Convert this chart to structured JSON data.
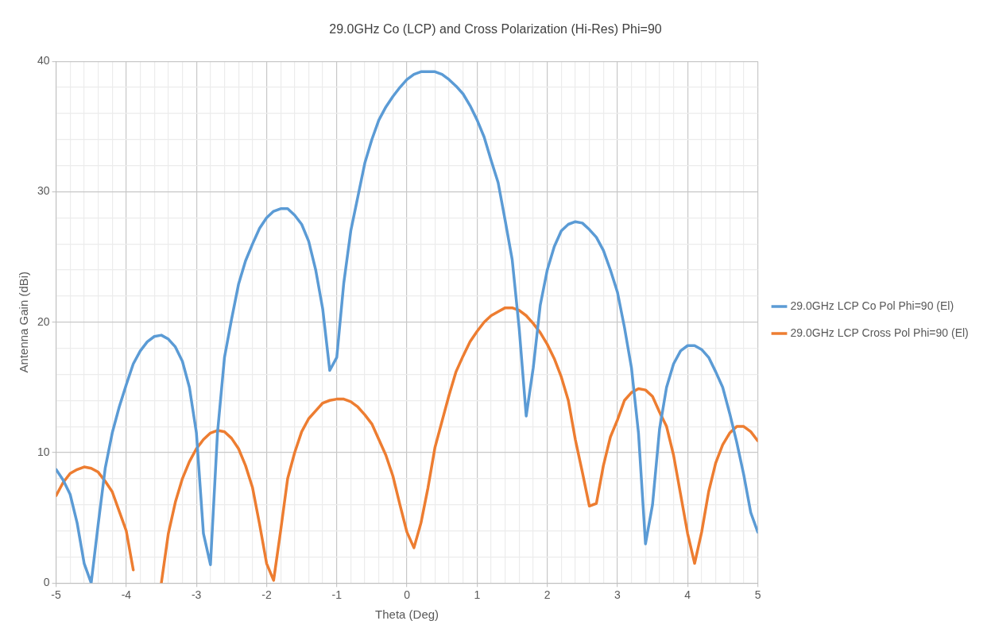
{
  "chart_data": {
    "type": "line",
    "title": "29.0GHz Co (LCP) and Cross Polarization (Hi-Res) Phi=90",
    "xlabel": "Theta (Deg)",
    "ylabel": "Antenna Gain (dBi)",
    "x": [
      -5,
      -4.9,
      -4.8,
      -4.7,
      -4.6,
      -4.5,
      -4.4,
      -4.3,
      -4.2,
      -4.1,
      -4,
      -3.9,
      -3.8,
      -3.7,
      -3.6,
      -3.5,
      -3.4,
      -3.3,
      -3.2,
      -3.1,
      -3,
      -2.9,
      -2.8,
      -2.7,
      -2.6,
      -2.5,
      -2.4,
      -2.3,
      -2.2,
      -2.1,
      -2,
      -1.9,
      -1.8,
      -1.7,
      -1.6,
      -1.5,
      -1.4,
      -1.3,
      -1.2,
      -1.1,
      -1,
      -0.9,
      -0.8,
      -0.7,
      -0.6,
      -0.5,
      -0.4,
      -0.3,
      -0.2,
      -0.1,
      0,
      0.1,
      0.2,
      0.3,
      0.4,
      0.5,
      0.6,
      0.7,
      0.8,
      0.9,
      1,
      1.1,
      1.2,
      1.3,
      1.4,
      1.5,
      1.6,
      1.7,
      1.8,
      1.9,
      2,
      2.1,
      2.2,
      2.3,
      2.4,
      2.5,
      2.6,
      2.7,
      2.8,
      2.9,
      3,
      3.1,
      3.2,
      3.3,
      3.4,
      3.5,
      3.6,
      3.7,
      3.8,
      3.9,
      4,
      4.1,
      4.2,
      4.3,
      4.4,
      4.5,
      4.6,
      4.7,
      4.8,
      4.9,
      5
    ],
    "series": [
      {
        "name": "29.0GHz LCP Co Pol Phi=90 (El)",
        "color": "#5b9bd5",
        "values": [
          8.7,
          7.9,
          6.8,
          4.6,
          1.5,
          0,
          4.5,
          8.8,
          11.5,
          13.5,
          15.2,
          16.8,
          17.8,
          18.5,
          18.9,
          19,
          18.7,
          18.1,
          17,
          15,
          11.5,
          3.8,
          1.4,
          11.5,
          17.3,
          20.2,
          22.9,
          24.7,
          26,
          27.2,
          28,
          28.5,
          28.7,
          28.7,
          28.2,
          27.5,
          26.2,
          24,
          21,
          16.3,
          17.3,
          23,
          27,
          29.6,
          32.2,
          34,
          35.5,
          36.5,
          37.3,
          38,
          38.6,
          39,
          39.2,
          39.2,
          39.2,
          39,
          38.6,
          38.1,
          37.5,
          36.6,
          35.5,
          34.2,
          32.4,
          30.7,
          27.8,
          24.8,
          19.5,
          12.8,
          16.5,
          21.3,
          24,
          25.8,
          27,
          27.5,
          27.7,
          27.6,
          27.1,
          26.5,
          25.5,
          24,
          22.3,
          19.6,
          16.5,
          11.5,
          3,
          6,
          11.8,
          15,
          16.8,
          17.8,
          18.2,
          18.2,
          17.9,
          17.3,
          16.2,
          15,
          13,
          10.8,
          8.3,
          5.4,
          3.9
        ]
      },
      {
        "name": "29.0GHz LCP Cross Pol Phi=90 (El)",
        "color": "#ed7d31",
        "values": [
          6.7,
          7.7,
          8.4,
          8.7,
          8.9,
          8.8,
          8.5,
          7.8,
          7,
          5.5,
          4,
          1,
          null,
          null,
          null,
          0,
          3.8,
          6.2,
          8,
          9.3,
          10.3,
          11,
          11.5,
          11.7,
          11.6,
          11.1,
          10.3,
          9,
          7.3,
          4.5,
          1.5,
          0.2,
          4,
          8,
          10,
          11.6,
          12.6,
          13.2,
          13.8,
          14,
          14.1,
          14.1,
          13.9,
          13.5,
          12.9,
          12.2,
          11,
          9.8,
          8.2,
          6,
          3.9,
          2.7,
          4.6,
          7.3,
          10.4,
          12.4,
          14.4,
          16.2,
          17.4,
          18.5,
          19.3,
          20,
          20.5,
          20.8,
          21.1,
          21.1,
          20.9,
          20.5,
          19.9,
          19.2,
          18.3,
          17.2,
          15.8,
          14,
          11,
          8.5,
          5.9,
          6.1,
          9,
          11.2,
          12.5,
          14,
          14.6,
          14.9,
          14.8,
          14.3,
          13.1,
          12,
          9.8,
          6.8,
          3.8,
          1.5,
          3.9,
          7,
          9.2,
          10.6,
          11.5,
          12,
          12,
          11.6,
          10.9
        ]
      }
    ],
    "xlim": [
      -5,
      5
    ],
    "xticks": [
      -5,
      {
        "value": -4.8,
        "label": null
      },
      {
        "value": -4.6,
        "label": null
      },
      {
        "value": -4.4,
        "label": null
      },
      {
        "value": -4.2,
        "label": null
      },
      -4,
      {
        "value": -3.8,
        "label": null
      },
      {
        "value": -3.6,
        "label": null
      },
      {
        "value": -3.4,
        "label": null
      },
      {
        "value": -3.2,
        "label": null
      },
      -3,
      {
        "value": -2.8,
        "label": null
      },
      {
        "value": -2.6,
        "label": null
      },
      {
        "value": -2.4,
        "label": null
      },
      {
        "value": -2.2,
        "label": null
      },
      -2,
      {
        "value": -1.8,
        "label": null
      },
      {
        "value": -1.6,
        "label": null
      },
      {
        "value": -1.4,
        "label": null
      },
      {
        "value": -1.2,
        "label": null
      },
      -1,
      {
        "value": -0.8,
        "label": null
      },
      {
        "value": -0.6,
        "label": null
      },
      {
        "value": -0.4,
        "label": null
      },
      {
        "value": -0.2,
        "label": null
      },
      0,
      {
        "value": 0.2,
        "label": null
      },
      {
        "value": 0.4,
        "label": null
      },
      {
        "value": 0.6,
        "label": null
      },
      {
        "value": 0.8,
        "label": null
      },
      1,
      {
        "value": 1.2,
        "label": null
      },
      {
        "value": 1.4,
        "label": null
      },
      {
        "value": 1.6,
        "label": null
      },
      {
        "value": 1.8,
        "label": null
      },
      2,
      {
        "value": 2.2,
        "label": null
      },
      {
        "value": 2.4,
        "label": null
      },
      {
        "value": 2.6,
        "label": null
      },
      {
        "value": 2.8,
        "label": null
      },
      3,
      {
        "value": 3.2,
        "label": null
      },
      {
        "value": 3.4,
        "label": null
      },
      {
        "value": 3.6,
        "label": null
      },
      {
        "value": 3.8,
        "label": null
      },
      4,
      {
        "value": 4.2,
        "label": null
      },
      {
        "value": 4.4,
        "label": null
      },
      {
        "value": 4.6,
        "label": null
      },
      {
        "value": 4.8,
        "label": null
      },
      5
    ],
    "ylim": [
      0,
      40
    ],
    "yticks": [
      0,
      {
        "value": 2,
        "label": null
      },
      {
        "value": 4,
        "label": null
      },
      {
        "value": 6,
        "label": null
      },
      {
        "value": 8,
        "label": null
      },
      10,
      {
        "value": 12,
        "label": null
      },
      {
        "value": 14,
        "label": null
      },
      {
        "value": 16,
        "label": null
      },
      {
        "value": 18,
        "label": null
      },
      20,
      {
        "value": 22,
        "label": null
      },
      {
        "value": 24,
        "label": null
      },
      {
        "value": 26,
        "label": null
      },
      {
        "value": 28,
        "label": null
      },
      30,
      {
        "value": 32,
        "label": null
      },
      {
        "value": 34,
        "label": null
      },
      {
        "value": 36,
        "label": null
      },
      {
        "value": 38,
        "label": null
      },
      40
    ],
    "grid": true,
    "legend": "right",
    "marker": "none",
    "line_style": "solid"
  }
}
